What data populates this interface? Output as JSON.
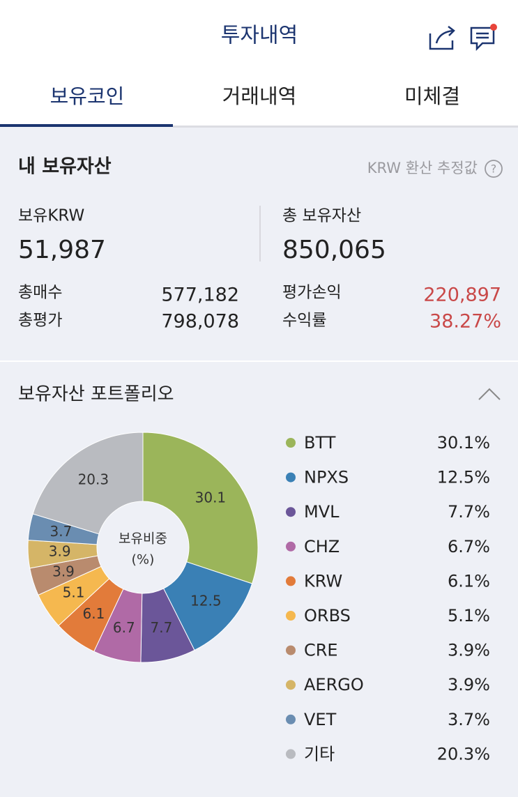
{
  "header": {
    "title": "투자내역"
  },
  "tabs": [
    "보유코인",
    "거래내역",
    "미체결"
  ],
  "assets": {
    "title": "내 보유자산",
    "note": "KRW 환산 추정값",
    "help": "?",
    "krw_label": "보유KRW",
    "krw_value": "51,987",
    "total_label": "총 보유자산",
    "total_value": "850,065",
    "rows": [
      [
        "총매수",
        "577,182"
      ],
      [
        "총평가",
        "798,078"
      ],
      [
        "평가손익",
        "220,897"
      ],
      [
        "수익률",
        "38.27%"
      ]
    ]
  },
  "portfolio_title": "보유자산 포트폴리오",
  "chart_data": {
    "type": "pie",
    "center_title": "보유비중",
    "center_unit": "(%)",
    "categories": [
      "BTT",
      "NPXS",
      "MVL",
      "CHZ",
      "KRW",
      "ORBS",
      "CRE",
      "AERGO",
      "VET",
      "기타"
    ],
    "values": [
      30.1,
      12.5,
      7.7,
      6.7,
      6.1,
      5.1,
      3.9,
      3.9,
      3.7,
      20.3
    ],
    "value_labels": [
      "30.1%",
      "12.5%",
      "7.7%",
      "6.7%",
      "6.1%",
      "5.1%",
      "3.9%",
      "3.9%",
      "3.7%",
      "20.3%"
    ],
    "colors": [
      "#9bb55a",
      "#3a80b5",
      "#6b5699",
      "#b06aa6",
      "#e27b3a",
      "#f5b84f",
      "#b98b6e",
      "#d5b567",
      "#6a8db1",
      "#b9bbc0"
    ]
  }
}
